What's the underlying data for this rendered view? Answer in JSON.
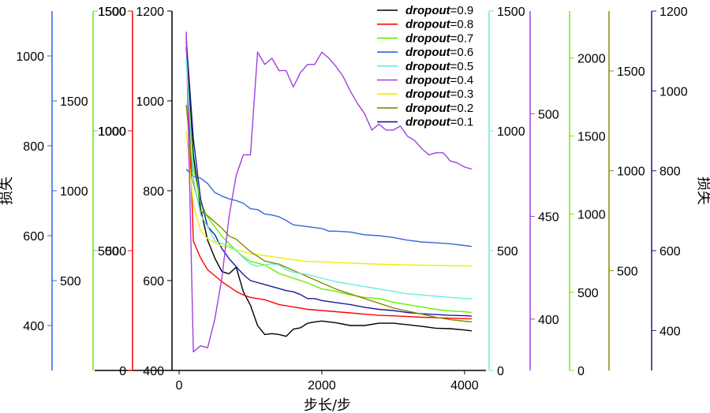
{
  "chart_data": {
    "type": "line",
    "xlabel": "步长/步",
    "x_ticks": [
      0,
      2000,
      4000
    ],
    "x_range": [
      -100,
      4300
    ],
    "axes": [
      {
        "key": "black",
        "series_index": 0,
        "color": "#000000",
        "side": "inner-left",
        "range": [
          400,
          1200
        ],
        "ticks": [
          400,
          600,
          800,
          1000,
          1200
        ],
        "label": ""
      },
      {
        "key": "red",
        "series_index": 1,
        "color": "#ff0000",
        "side": "left",
        "range": [
          0,
          1500
        ],
        "ticks": [
          0,
          500,
          1000,
          1500
        ],
        "label": ""
      },
      {
        "key": "green",
        "series_index": 2,
        "color": "#66ee00",
        "side": "left",
        "range": [
          0,
          1500
        ],
        "ticks": [
          500,
          1000,
          1500
        ],
        "label": ""
      },
      {
        "key": "blue",
        "series_index": 3,
        "color": "#3366dd",
        "side": "left",
        "range": [
          0,
          2000
        ],
        "ticks": [
          500,
          1000,
          1500
        ],
        "label": ""
      },
      {
        "key": "darkblue",
        "series_index": 8,
        "color": "#1a1a99",
        "side": "right",
        "range": [
          300,
          1200
        ],
        "ticks": [
          400,
          600,
          800,
          1000,
          1200
        ],
        "label": "损失"
      },
      {
        "key": "olive",
        "series_index": 6,
        "color": "#888800",
        "side": "right",
        "range": [
          0,
          1800
        ],
        "ticks": [
          500,
          1000,
          1500
        ],
        "label": ""
      },
      {
        "key": "lime",
        "series_index": 7,
        "color": "#77ee00",
        "side": "right",
        "range": [
          0,
          2300
        ],
        "ticks": [
          0,
          500,
          1000,
          1500,
          2000
        ],
        "label": ""
      },
      {
        "key": "purple",
        "series_index": 5,
        "color": "#a040e0",
        "side": "right",
        "range": [
          375,
          550
        ],
        "ticks": [
          400,
          450,
          500
        ],
        "label": ""
      },
      {
        "key": "cyan",
        "series_index": 4,
        "color": "#66eedd",
        "side": "right",
        "range": [
          0,
          1500
        ],
        "ticks": [
          0,
          500,
          1000,
          1500
        ],
        "label": ""
      }
    ],
    "outer_left_axis": {
      "color": "#3366dd",
      "range": [
        300,
        1100
      ],
      "ticks": [
        400,
        600,
        800,
        1000
      ],
      "label": "损失"
    },
    "series": [
      {
        "name": "dropout=0.9",
        "prefix": "dropout",
        "value_text": "=0.9",
        "color": "#000000",
        "x": [
          100,
          200,
          300,
          400,
          500,
          600,
          700,
          800,
          900,
          1000,
          1100,
          1200,
          1300,
          1400,
          1500,
          1600,
          1700,
          1800,
          1900,
          2000,
          2200,
          2400,
          2600,
          2800,
          3000,
          3200,
          3400,
          3600,
          3800,
          4000,
          4100
        ],
        "y": [
          1120,
          880,
          760,
          690,
          650,
          620,
          615,
          630,
          575,
          545,
          500,
          480,
          482,
          480,
          476,
          492,
          495,
          505,
          508,
          510,
          506,
          500,
          500,
          505,
          505,
          502,
          498,
          494,
          493,
          490,
          488
        ]
      },
      {
        "name": "dropout=0.8",
        "prefix": "dropout",
        "value_text": "=0.8",
        "color": "#ff0000",
        "x": [
          100,
          200,
          300,
          400,
          500,
          600,
          700,
          800,
          900,
          1000,
          1200,
          1400,
          1600,
          1800,
          2000,
          2200,
          2400,
          2600,
          2800,
          3000,
          3200,
          3400,
          3600,
          3800,
          4000,
          4100
        ],
        "y": [
          1400,
          540,
          470,
          420,
          395,
          370,
          350,
          330,
          315,
          305,
          295,
          275,
          265,
          255,
          250,
          245,
          240,
          235,
          230,
          228,
          225,
          222,
          220,
          218,
          216,
          215
        ]
      },
      {
        "name": "dropout=0.7",
        "prefix": "dropout",
        "value_text": "=0.7",
        "color": "#66ee00",
        "x": [
          100,
          200,
          300,
          400,
          500,
          600,
          700,
          800,
          900,
          1000,
          1200,
          1400,
          1600,
          1800,
          2000,
          2200,
          2400,
          2600,
          2800,
          3000,
          3200,
          3400,
          3600,
          3800,
          4000,
          4100
        ],
        "y": [
          1300,
          850,
          700,
          640,
          600,
          560,
          530,
          500,
          475,
          455,
          440,
          405,
          385,
          365,
          340,
          330,
          315,
          305,
          300,
          285,
          275,
          265,
          255,
          248,
          245,
          242
        ]
      },
      {
        "name": "dropout=0.6",
        "prefix": "dropout",
        "value_text": "=0.6",
        "color": "#3366dd",
        "x": [
          100,
          200,
          300,
          400,
          500,
          600,
          700,
          800,
          900,
          1000,
          1100,
          1200,
          1300,
          1400,
          1500,
          1600,
          1800,
          2000,
          2100,
          2200,
          2400,
          2600,
          2800,
          3000,
          3200,
          3400,
          3600,
          3800,
          4000,
          4100
        ],
        "y": [
          1120,
          1080,
          1070,
          1040,
          990,
          970,
          955,
          945,
          930,
          900,
          895,
          870,
          865,
          855,
          835,
          810,
          800,
          790,
          775,
          775,
          770,
          755,
          750,
          740,
          725,
          715,
          710,
          705,
          695,
          690
        ]
      },
      {
        "name": "dropout=0.5",
        "prefix": "dropout",
        "value_text": "=0.5",
        "color": "#66eedd",
        "x": [
          100,
          200,
          300,
          400,
          500,
          600,
          700,
          800,
          900,
          1000,
          1100,
          1200,
          1300,
          1400,
          1500,
          1600,
          1800,
          2000,
          2200,
          2400,
          2600,
          2800,
          3000,
          3200,
          3400,
          3600,
          3800,
          4000,
          4100
        ],
        "y": [
          1300,
          800,
          650,
          600,
          540,
          530,
          520,
          500,
          470,
          445,
          435,
          440,
          445,
          440,
          420,
          410,
          400,
          385,
          370,
          360,
          350,
          340,
          330,
          320,
          315,
          310,
          305,
          300,
          300
        ]
      },
      {
        "name": "dropout=0.4",
        "prefix": "dropout",
        "value_text": "=0.4",
        "color": "#a040e0",
        "x": [
          100,
          200,
          300,
          400,
          500,
          600,
          700,
          800,
          900,
          1000,
          1100,
          1200,
          1300,
          1400,
          1500,
          1600,
          1700,
          1800,
          1900,
          2000,
          2100,
          2200,
          2300,
          2400,
          2500,
          2600,
          2700,
          2800,
          2900,
          3000,
          3100,
          3200,
          3300,
          3400,
          3500,
          3600,
          3700,
          3800,
          3900,
          4000,
          4100
        ],
        "y": [
          540,
          384,
          387,
          386,
          400,
          420,
          450,
          470,
          480,
          480,
          530,
          524,
          527,
          521,
          521,
          513,
          520,
          524,
          524,
          530,
          527,
          523,
          518,
          511,
          505,
          500,
          492,
          495,
          492,
          492,
          494,
          489,
          487,
          483,
          480,
          481,
          481,
          477,
          476,
          474,
          473
        ]
      },
      {
        "name": "dropout=0.3",
        "prefix": "dropout",
        "value_text": "=0.3",
        "color": "#eeee00",
        "x": [
          100,
          200,
          300,
          400,
          500,
          600,
          700,
          800,
          900,
          1000,
          1200,
          1400,
          1600,
          1800,
          2000,
          2200,
          2400,
          2600,
          2800,
          3000,
          3200,
          3400,
          3600,
          3800,
          4000,
          4100
        ],
        "y": [
          1200,
          830,
          700,
          660,
          640,
          625,
          615,
          605,
          595,
          585,
          575,
          565,
          555,
          545,
          545,
          540,
          538,
          535,
          532,
          530,
          528,
          527,
          526,
          525,
          524,
          523
        ]
      },
      {
        "name": "dropout=0.2",
        "prefix": "dropout",
        "value_text": "=0.2",
        "color": "#888800",
        "x": [
          100,
          200,
          300,
          400,
          500,
          600,
          700,
          800,
          900,
          1000,
          1200,
          1400,
          1600,
          1800,
          2000,
          2200,
          2400,
          2600,
          2800,
          3000,
          3200,
          3400,
          3600,
          3800,
          4000,
          4100
        ],
        "y": [
          1700,
          1200,
          1020,
          990,
          950,
          910,
          860,
          840,
          800,
          760,
          700,
          680,
          640,
          600,
          560,
          520,
          490,
          460,
          430,
          400,
          380,
          360,
          340,
          325,
          315,
          310
        ]
      },
      {
        "name": "dropout=0.1",
        "prefix": "dropout",
        "value_text": "=0.1",
        "color": "#1a1a99",
        "x": [
          100,
          200,
          300,
          400,
          500,
          600,
          700,
          800,
          900,
          1000,
          1100,
          1200,
          1300,
          1400,
          1500,
          1600,
          1700,
          1800,
          1900,
          2000,
          2200,
          2400,
          2600,
          2800,
          3000,
          3200,
          3400,
          3600,
          3800,
          4000,
          4100
        ],
        "y": [
          1130,
          880,
          730,
          660,
          640,
          605,
          580,
          560,
          540,
          525,
          520,
          515,
          510,
          505,
          500,
          497,
          490,
          480,
          480,
          475,
          470,
          465,
          458,
          453,
          450,
          445,
          442,
          440,
          438,
          437,
          436
        ]
      }
    ],
    "grid": false,
    "legend_position": "top-center"
  }
}
